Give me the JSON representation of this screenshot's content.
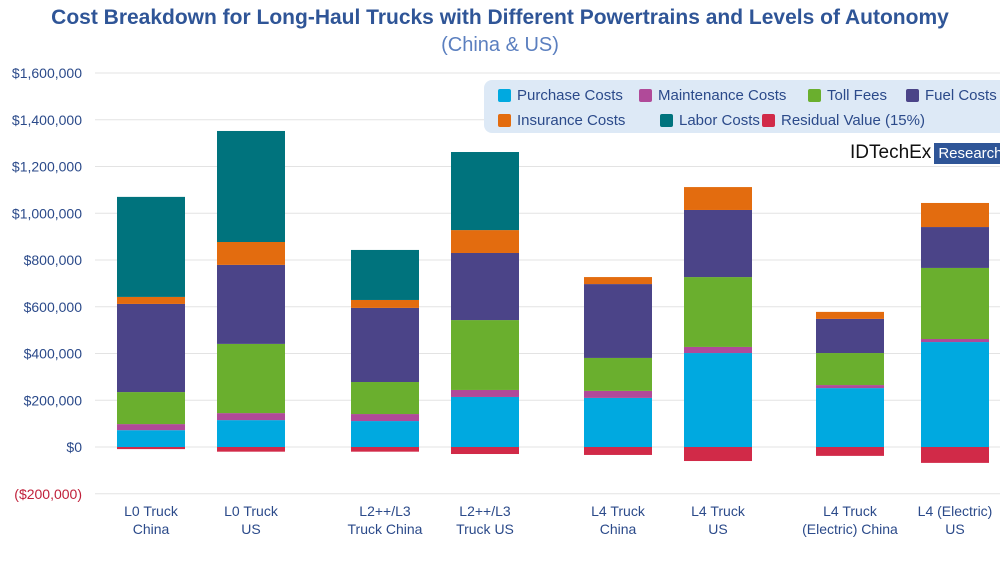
{
  "chart_data": {
    "type": "bar",
    "stacked": true,
    "title": "Cost Breakdown for Long-Haul Trucks with Different Powertrains and Levels of Autonomy",
    "subtitle": "(China & US)",
    "categories": [
      "L0 Truck\nChina",
      "L0 Truck\nUS",
      "L2++/L3\nTruck China",
      "L2++/L3\nTruck US",
      "L4 Truck\nChina",
      "L4 Truck\nUS",
      "L4 Truck\n(Electric) China",
      "L4 (Electric)\nUS"
    ],
    "series": [
      {
        "name": "Purchase Costs",
        "color": "#00a9e0",
        "values": [
          72000,
          115000,
          111000,
          214000,
          210000,
          402000,
          252000,
          449000
        ]
      },
      {
        "name": "Maintenance Costs",
        "color": "#b04a99",
        "values": [
          26000,
          30000,
          30000,
          30000,
          30000,
          26000,
          13000,
          13000
        ]
      },
      {
        "name": "Toll Fees",
        "color": "#6aaf2e",
        "values": [
          137000,
          296000,
          137000,
          299000,
          141000,
          299000,
          137000,
          304000
        ]
      },
      {
        "name": "Fuel Costs",
        "color": "#4b4488",
        "values": [
          377000,
          338000,
          317000,
          287000,
          316000,
          287000,
          146000,
          175000
        ]
      },
      {
        "name": "Insurance Costs",
        "color": "#e36c0f",
        "values": [
          30000,
          98000,
          34000,
          98000,
          30000,
          98000,
          30000,
          103000
        ]
      },
      {
        "name": "Labor Costs",
        "color": "#00737d",
        "values": [
          428000,
          475000,
          214000,
          334000,
          0,
          0,
          0,
          0
        ]
      },
      {
        "name": "Residual Value (15%)",
        "color": "#d12a48",
        "values": [
          -9000,
          -20000,
          -20000,
          -30000,
          -34000,
          -60000,
          -38000,
          -68000
        ]
      }
    ],
    "yticks": [
      "($200,000)",
      "$0",
      "$200,000",
      "$400,000",
      "$600,000",
      "$800,000",
      "$1,000,000",
      "$1,200,000",
      "$1,400,000",
      "$1,600,000"
    ],
    "ylim": [
      -200000,
      1600000
    ],
    "grid": true,
    "legend_placement": "top-right"
  },
  "logo": {
    "text": "IDTechEx",
    "badge": "Research"
  }
}
